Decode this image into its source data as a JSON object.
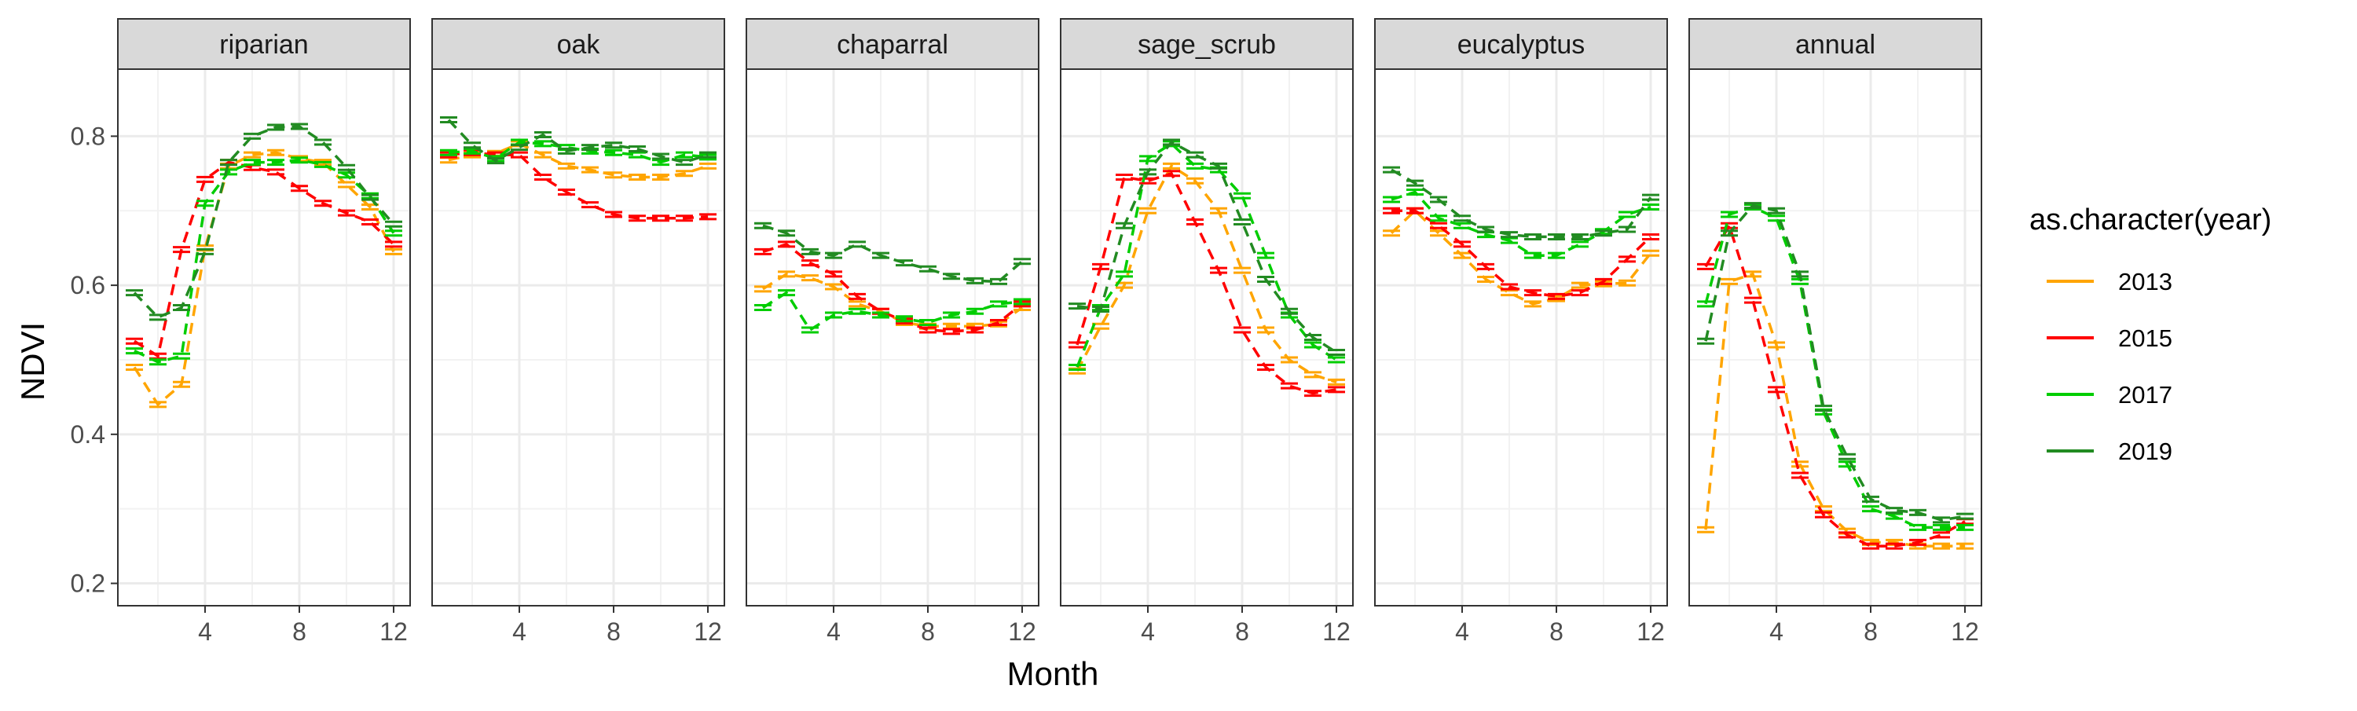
{
  "chart_data": {
    "type": "line",
    "xlabel": "Month",
    "ylabel": "NDVI",
    "xlim": [
      0.3,
      12.7
    ],
    "ylim": [
      0.17,
      0.89
    ],
    "x_ticks": [
      4,
      8,
      12
    ],
    "x_tick_labels": [
      "4",
      "8",
      "12"
    ],
    "y_ticks": [
      0.2,
      0.4,
      0.6,
      0.8
    ],
    "y_tick_labels": [
      "0.2",
      "0.4",
      "0.6",
      "0.8"
    ],
    "grid": true,
    "legend_position": "right",
    "legend_title": "as.character(year)",
    "series_styles": [
      {
        "name": "2013",
        "color": "#FFA500"
      },
      {
        "name": "2015",
        "color": "#FF0000"
      },
      {
        "name": "2017",
        "color": "#00CD00"
      },
      {
        "name": "2019",
        "color": "#228B22"
      }
    ],
    "x": [
      1,
      2,
      3,
      4,
      5,
      6,
      7,
      8,
      9,
      10,
      11,
      12
    ],
    "panels": [
      {
        "title": "riparian",
        "series": [
          {
            "name": "2013",
            "values": [
              0.49,
              0.44,
              0.467,
              0.65,
              0.76,
              0.775,
              0.778,
              0.77,
              0.765,
              0.735,
              0.705,
              0.645
            ]
          },
          {
            "name": "2015",
            "values": [
              0.525,
              0.505,
              0.648,
              0.742,
              0.765,
              0.758,
              0.752,
              0.73,
              0.71,
              0.697,
              0.685,
              0.655
            ]
          },
          {
            "name": "2017",
            "values": [
              0.512,
              0.497,
              0.505,
              0.71,
              0.752,
              0.765,
              0.765,
              0.768,
              0.762,
              0.748,
              0.72,
              0.67
            ]
          },
          {
            "name": "2019",
            "values": [
              0.59,
              0.557,
              0.57,
              0.645,
              0.765,
              0.8,
              0.812,
              0.813,
              0.792,
              0.758,
              0.718,
              0.682
            ]
          }
        ]
      },
      {
        "title": "oak",
        "series": [
          {
            "name": "2013",
            "values": [
              0.768,
              0.775,
              0.777,
              0.79,
              0.775,
              0.76,
              0.755,
              0.748,
              0.745,
              0.745,
              0.75,
              0.76
            ]
          },
          {
            "name": "2015",
            "values": [
              0.775,
              0.778,
              0.775,
              0.775,
              0.745,
              0.725,
              0.708,
              0.695,
              0.69,
              0.69,
              0.69,
              0.692
            ]
          },
          {
            "name": "2017",
            "values": [
              0.778,
              0.78,
              0.77,
              0.792,
              0.79,
              0.785,
              0.78,
              0.778,
              0.775,
              0.765,
              0.775,
              0.772
            ]
          },
          {
            "name": "2019",
            "values": [
              0.822,
              0.788,
              0.767,
              0.785,
              0.802,
              0.78,
              0.785,
              0.788,
              0.783,
              0.773,
              0.765,
              0.775
            ]
          }
        ]
      },
      {
        "title": "chaparral",
        "series": [
          {
            "name": "2013",
            "values": [
              0.595,
              0.615,
              0.61,
              0.598,
              0.575,
              0.565,
              0.55,
              0.545,
              0.545,
              0.545,
              0.548,
              0.57
            ]
          },
          {
            "name": "2015",
            "values": [
              0.645,
              0.655,
              0.63,
              0.615,
              0.585,
              0.565,
              0.552,
              0.54,
              0.538,
              0.54,
              0.55,
              0.575
            ]
          },
          {
            "name": "2017",
            "values": [
              0.57,
              0.59,
              0.54,
              0.56,
              0.565,
              0.56,
              0.555,
              0.55,
              0.56,
              0.565,
              0.575,
              0.578
            ]
          },
          {
            "name": "2019",
            "values": [
              0.68,
              0.67,
              0.645,
              0.64,
              0.655,
              0.64,
              0.63,
              0.622,
              0.612,
              0.606,
              0.605,
              0.632
            ]
          }
        ]
      },
      {
        "title": "sage_scrub",
        "series": [
          {
            "name": "2013",
            "values": [
              0.485,
              0.545,
              0.6,
              0.7,
              0.76,
              0.74,
              0.7,
              0.62,
              0.54,
              0.5,
              0.48,
              0.47
            ]
          },
          {
            "name": "2015",
            "values": [
              0.52,
              0.625,
              0.745,
              0.74,
              0.75,
              0.685,
              0.62,
              0.54,
              0.49,
              0.465,
              0.455,
              0.46
            ]
          },
          {
            "name": "2017",
            "values": [
              0.49,
              0.57,
              0.615,
              0.77,
              0.79,
              0.76,
              0.755,
              0.72,
              0.64,
              0.56,
              0.52,
              0.5
            ]
          },
          {
            "name": "2019",
            "values": [
              0.572,
              0.568,
              0.68,
              0.752,
              0.792,
              0.775,
              0.76,
              0.685,
              0.608,
              0.565,
              0.53,
              0.51
            ]
          }
        ]
      },
      {
        "title": "eucalyptus",
        "series": [
          {
            "name": "2013",
            "values": [
              0.67,
              0.7,
              0.67,
              0.64,
              0.608,
              0.59,
              0.575,
              0.582,
              0.6,
              0.602,
              0.603,
              0.643
            ]
          },
          {
            "name": "2015",
            "values": [
              0.7,
              0.7,
              0.68,
              0.655,
              0.625,
              0.598,
              0.59,
              0.585,
              0.59,
              0.605,
              0.635,
              0.665
            ]
          },
          {
            "name": "2017",
            "values": [
              0.715,
              0.725,
              0.69,
              0.68,
              0.668,
              0.66,
              0.64,
              0.64,
              0.655,
              0.672,
              0.695,
              0.705
            ]
          },
          {
            "name": "2019",
            "values": [
              0.755,
              0.737,
              0.715,
              0.69,
              0.675,
              0.668,
              0.665,
              0.665,
              0.665,
              0.67,
              0.675,
              0.718
            ]
          }
        ]
      },
      {
        "title": "annual",
        "series": [
          {
            "name": "2013",
            "values": [
              0.272,
              0.605,
              0.615,
              0.52,
              0.36,
              0.3,
              0.27,
              0.255,
              0.255,
              0.25,
              0.25,
              0.25
            ]
          },
          {
            "name": "2015",
            "values": [
              0.625,
              0.68,
              0.58,
              0.46,
              0.345,
              0.292,
              0.265,
              0.25,
              0.25,
              0.255,
              0.265,
              0.283
            ]
          },
          {
            "name": "2017",
            "values": [
              0.575,
              0.695,
              0.705,
              0.69,
              0.605,
              0.43,
              0.36,
              0.3,
              0.29,
              0.275,
              0.275,
              0.275
            ]
          },
          {
            "name": "2019",
            "values": [
              0.525,
              0.67,
              0.707,
              0.7,
              0.615,
              0.435,
              0.37,
              0.313,
              0.298,
              0.295,
              0.285,
              0.29
            ]
          }
        ]
      }
    ]
  }
}
